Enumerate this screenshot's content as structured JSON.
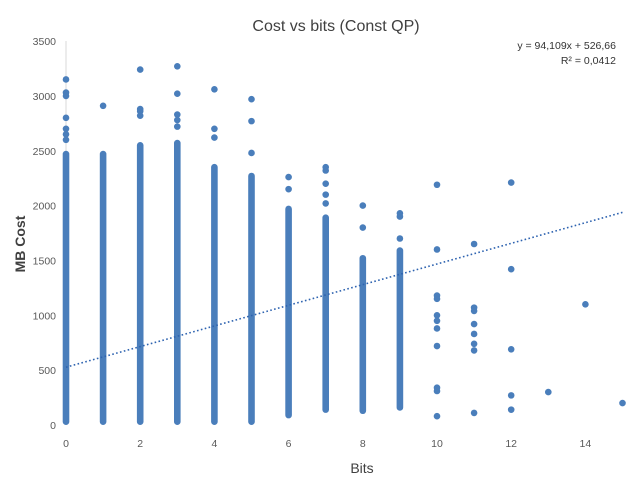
{
  "chart_data": {
    "type": "scatter",
    "title": "Cost  vs bits (Const QP)",
    "xlabel": "Bits",
    "ylabel": "MB Cost",
    "xlim": [
      0,
      15
    ],
    "ylim": [
      0,
      3500
    ],
    "x_ticks": [
      "0",
      "2",
      "4",
      "6",
      "8",
      "10",
      "12",
      "14"
    ],
    "y_ticks": [
      "0",
      "500",
      "1000",
      "1500",
      "2000",
      "2500",
      "3000",
      "3500"
    ],
    "grid": false,
    "legend": "none",
    "marker_color": "#4a7ebb",
    "trendline": {
      "type": "linear",
      "slope": 94.109,
      "intercept": 526.66,
      "style": "dotted",
      "equation_label": "y = 94,109x + 526,66",
      "r2_label": "R² = 0,0412"
    },
    "columns": [
      {
        "x": 0,
        "dense": [
          0,
          2500
        ],
        "outliers": [
          2600,
          2650,
          2700,
          2800,
          3000,
          3030,
          3150
        ]
      },
      {
        "x": 1,
        "dense": [
          0,
          2500
        ],
        "outliers": [
          2910
        ]
      },
      {
        "x": 2,
        "dense": [
          0,
          2580
        ],
        "outliers": [
          2820,
          2860,
          2880,
          3240
        ]
      },
      {
        "x": 3,
        "dense": [
          0,
          2600
        ],
        "outliers": [
          2720,
          2780,
          2830,
          3020,
          3270
        ]
      },
      {
        "x": 4,
        "dense": [
          0,
          2380
        ],
        "outliers": [
          2620,
          2700,
          3060
        ]
      },
      {
        "x": 5,
        "dense": [
          0,
          2300
        ],
        "outliers": [
          2480,
          2770,
          2970
        ]
      },
      {
        "x": 6,
        "dense": [
          60,
          2000
        ],
        "outliers": [
          2150,
          2260
        ]
      },
      {
        "x": 7,
        "dense": [
          110,
          1920
        ],
        "outliers": [
          2020,
          2100,
          2200,
          2320,
          2350
        ]
      },
      {
        "x": 8,
        "dense": [
          100,
          1550
        ],
        "outliers": [
          1800,
          2000
        ]
      },
      {
        "x": 9,
        "dense": [
          130,
          1620
        ],
        "outliers": [
          1700,
          1900,
          1930
        ]
      },
      {
        "x": 10,
        "dense": null,
        "outliers": [
          80,
          310,
          340,
          720,
          880,
          950,
          1000,
          1150,
          1180,
          1600,
          2190
        ]
      },
      {
        "x": 11,
        "dense": null,
        "outliers": [
          110,
          680,
          740,
          830,
          920,
          1040,
          1070,
          1650
        ]
      },
      {
        "x": 12,
        "dense": null,
        "outliers": [
          140,
          270,
          690,
          1420,
          2210
        ]
      },
      {
        "x": 13,
        "dense": null,
        "outliers": [
          300
        ]
      },
      {
        "x": 14,
        "dense": null,
        "outliers": [
          1100
        ]
      },
      {
        "x": 15,
        "dense": null,
        "outliers": [
          200
        ]
      }
    ]
  }
}
